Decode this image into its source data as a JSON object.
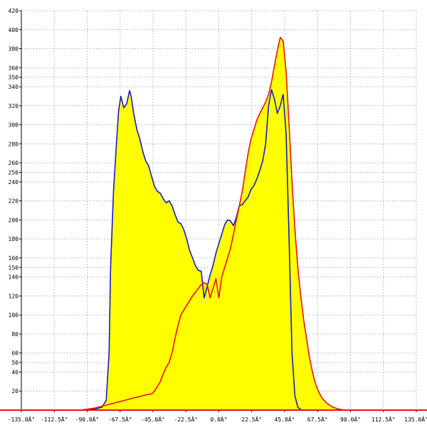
{
  "chart_data": {
    "type": "area",
    "title": "",
    "xlabel": "",
    "ylabel": "",
    "xlim": [
      -135,
      135
    ],
    "ylim": [
      0,
      420
    ],
    "grid": true,
    "x_ticks": [
      -135,
      -112.5,
      -90,
      -67.5,
      -45,
      -22.5,
      0,
      22.5,
      45,
      67.5,
      90,
      112.5,
      135
    ],
    "x_tick_labels": [
      "-135.0Â°",
      "-112.5Â°",
      "-90.0Â°",
      "-67.5Â°",
      "-45.0Â°",
      "-22.5Â°",
      "0.0Â°",
      "22.5Â°",
      "45.0Â°",
      "67.5Â°",
      "90.0Â°",
      "112.5Â°",
      "135.0Â°"
    ],
    "y_ticks": [
      20,
      40,
      50,
      60,
      80,
      100,
      120,
      140,
      150,
      160,
      180,
      200,
      220,
      240,
      250,
      260,
      280,
      300,
      320,
      340,
      350,
      360,
      380,
      400,
      420
    ],
    "y_tick_labels": [
      "20",
      "40",
      "50",
      "60",
      "80",
      "100",
      "120",
      "140",
      "150",
      "160",
      "180",
      "200",
      "220",
      "240",
      "250",
      "260",
      "280",
      "300",
      "320",
      "340",
      "350",
      "360",
      "380",
      "400",
      "420"
    ],
    "colors": {
      "fill": "#ffff00",
      "series_blue": "#1a1acc",
      "series_red": "#ee1111",
      "grid": "#c0c0c0",
      "axis": "#000000",
      "baseline": "#ee1111"
    },
    "series": [
      {
        "color": "#1a1acc",
        "x": [
          -135,
          -90,
          -85,
          -80,
          -77,
          -75,
          -74,
          -72,
          -70,
          -68.5,
          -67,
          -65,
          -63,
          -61,
          -60,
          -58,
          -56,
          -54,
          -52,
          -50,
          -48,
          -46,
          -44,
          -42,
          -40,
          -38,
          -36,
          -34,
          -32,
          -30,
          -28,
          -26,
          -24,
          -22,
          -20,
          -18,
          -16,
          -14,
          -12,
          -10,
          -8,
          -6,
          -4,
          -2,
          0,
          2,
          4,
          6,
          8,
          10,
          12,
          14,
          16,
          18,
          20,
          22,
          24,
          26,
          28,
          30,
          32,
          34,
          36,
          38,
          40,
          42,
          44,
          46,
          48,
          50,
          52,
          54,
          56,
          58,
          60,
          62,
          64,
          66,
          68,
          70,
          72,
          74,
          76,
          78,
          80,
          82,
          84,
          86,
          90,
          95,
          135
        ],
        "y": [
          0,
          0,
          1,
          3,
          10,
          60,
          150,
          230,
          280,
          315,
          330,
          318,
          322,
          336,
          330,
          310,
          295,
          285,
          272,
          262,
          257,
          246,
          235,
          230,
          228,
          222,
          218,
          220,
          215,
          206,
          198,
          196,
          190,
          180,
          168,
          160,
          152,
          147,
          146,
          118,
          130,
          142,
          152,
          165,
          175,
          185,
          195,
          200,
          199,
          194,
          203,
          215,
          216,
          220,
          224,
          232,
          236,
          243,
          252,
          262,
          280,
          320,
          337,
          327,
          312,
          320,
          332,
          290,
          180,
          60,
          15,
          3,
          0.5,
          0,
          0,
          0,
          0,
          0,
          0,
          0,
          0,
          0,
          0,
          0,
          0,
          0,
          0,
          0,
          0,
          0,
          0
        ]
      },
      {
        "color": "#ee1111",
        "x": [
          -135,
          -95,
          -90,
          -85,
          -80,
          -75,
          -70,
          -65,
          -60,
          -55,
          -50,
          -46,
          -44,
          -42,
          -40,
          -38,
          -36,
          -34,
          -32,
          -30,
          -28,
          -26,
          -24,
          -22,
          -20,
          -18,
          -16,
          -14,
          -12,
          -10,
          -8,
          -6,
          -4,
          -2,
          0,
          2,
          4,
          6,
          8,
          10,
          12,
          14,
          16,
          18,
          20,
          22,
          24,
          26,
          28,
          30,
          32,
          34,
          36,
          38,
          40,
          42,
          44,
          46,
          48,
          50,
          52,
          54,
          56,
          58,
          60,
          62,
          64,
          66,
          68,
          70,
          72,
          74,
          76,
          78,
          80,
          82,
          84,
          86,
          88,
          90,
          95,
          135
        ],
        "y": [
          0,
          0,
          1,
          2,
          4,
          6,
          8,
          10,
          12,
          14,
          16,
          17,
          20,
          25,
          30,
          38,
          45,
          50,
          60,
          75,
          88,
          100,
          105,
          110,
          115,
          120,
          124,
          128,
          132,
          134,
          132,
          118,
          128,
          138,
          118,
          140,
          150,
          160,
          170,
          185,
          200,
          215,
          230,
          250,
          270,
          285,
          295,
          305,
          312,
          318,
          324,
          332,
          345,
          362,
          378,
          392,
          388,
          355,
          300,
          240,
          190,
          150,
          120,
          95,
          75,
          55,
          40,
          28,
          20,
          14,
          10,
          7,
          5,
          3,
          2,
          1,
          0.5,
          0,
          0,
          0,
          0,
          0
        ]
      }
    ]
  }
}
